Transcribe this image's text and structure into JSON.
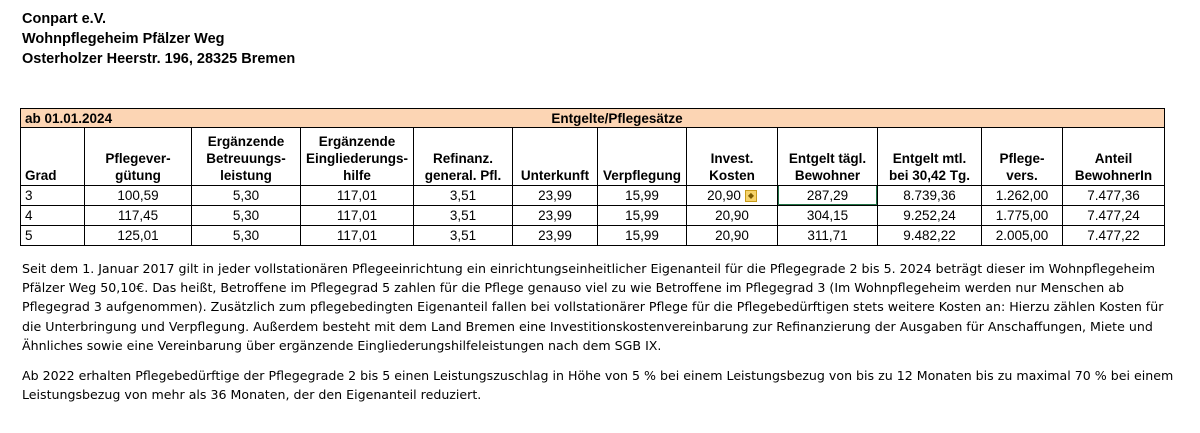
{
  "header": {
    "line1": "Conpart e.V.",
    "line2": "Wohnpflegeheim Pfälzer Weg",
    "line3": "Osterholzer Heerstr. 196, 28325 Bremen"
  },
  "table": {
    "valid_from": "ab 01.01.2024",
    "banner_title": "Entgelte/Pflegesätze",
    "headers": [
      "Grad",
      "Pflegever-\ngütung",
      "Ergänzende\nBetreuungs-\nleistung",
      "Ergänzende\nEingliederungs-\nhilfe",
      "Refinanz.\ngeneral. Pfl.",
      "Unterkunft",
      "Verpflegung",
      "Invest.\nKosten",
      "Entgelt tägl.\nBewohner",
      "Entgelt mtl.\nbei 30,42 Tg.",
      "Pflege-\nvers.",
      "Anteil\nBewohnerIn"
    ],
    "rows": [
      [
        "3",
        "100,59",
        "5,30",
        "117,01",
        "3,51",
        "23,99",
        "15,99",
        "20,90",
        "287,29",
        "8.739,36",
        "1.262,00",
        "7.477,36"
      ],
      [
        "4",
        "117,45",
        "5,30",
        "117,01",
        "3,51",
        "23,99",
        "15,99",
        "20,90",
        "304,15",
        "9.252,24",
        "1.775,00",
        "7.477,24"
      ],
      [
        "5",
        "125,01",
        "5,30",
        "117,01",
        "3,51",
        "23,99",
        "15,99",
        "20,90",
        "311,71",
        "9.482,22",
        "2.005,00",
        "7.477,22"
      ]
    ]
  },
  "paragraphs": {
    "p1": "Seit dem 1. Januar 2017 gilt in jeder vollstationären Pflegeeinrichtung ein einrichtungseinheitlicher Eigenanteil für die Pflegegrade 2 bis 5. 2024 beträgt dieser im Wohnpflegeheim Pfälzer Weg 50,10€. Das heißt, Betroffene im Pflegegrad 5 zahlen für die Pflege genauso viel zu wie Betroffene im Pflegegrad 3 (Im Wohnpflegeheim werden nur Menschen ab Pflegegrad 3 aufgenommen). Zusätzlich zum pflegebedingten Eigenanteil fallen bei vollstationärer Pflege für die Pflegebedürftigen stets weitere Kosten an: Hierzu zählen Kosten für die Unterbringung und Verpflegung. Außerdem besteht mit dem Land Bremen eine Investitionskostenvereinbarung zur Refinanzierung der Ausgaben für Anschaffungen, Miete und Ähnliches sowie eine Vereinbarung über ergänzende Eingliederungshilfeleistungen nach dem SGB IX.",
    "p2": "Ab 2022 erhalten Pflegebedürftige der Pflegegrade 2 bis 5 einen Leistungszuschlag in Höhe von 5 % bei einem Leistungsbezug von bis zu 12 Monaten bis zu maximal 70 % bei einem Leistungsbezug von mehr als 36 Monaten, der den Eigenanteil reduziert."
  },
  "colors": {
    "banner": "#fcd5b4",
    "selection": "#217346"
  },
  "icons": {
    "cell_warning": "warning-icon"
  }
}
